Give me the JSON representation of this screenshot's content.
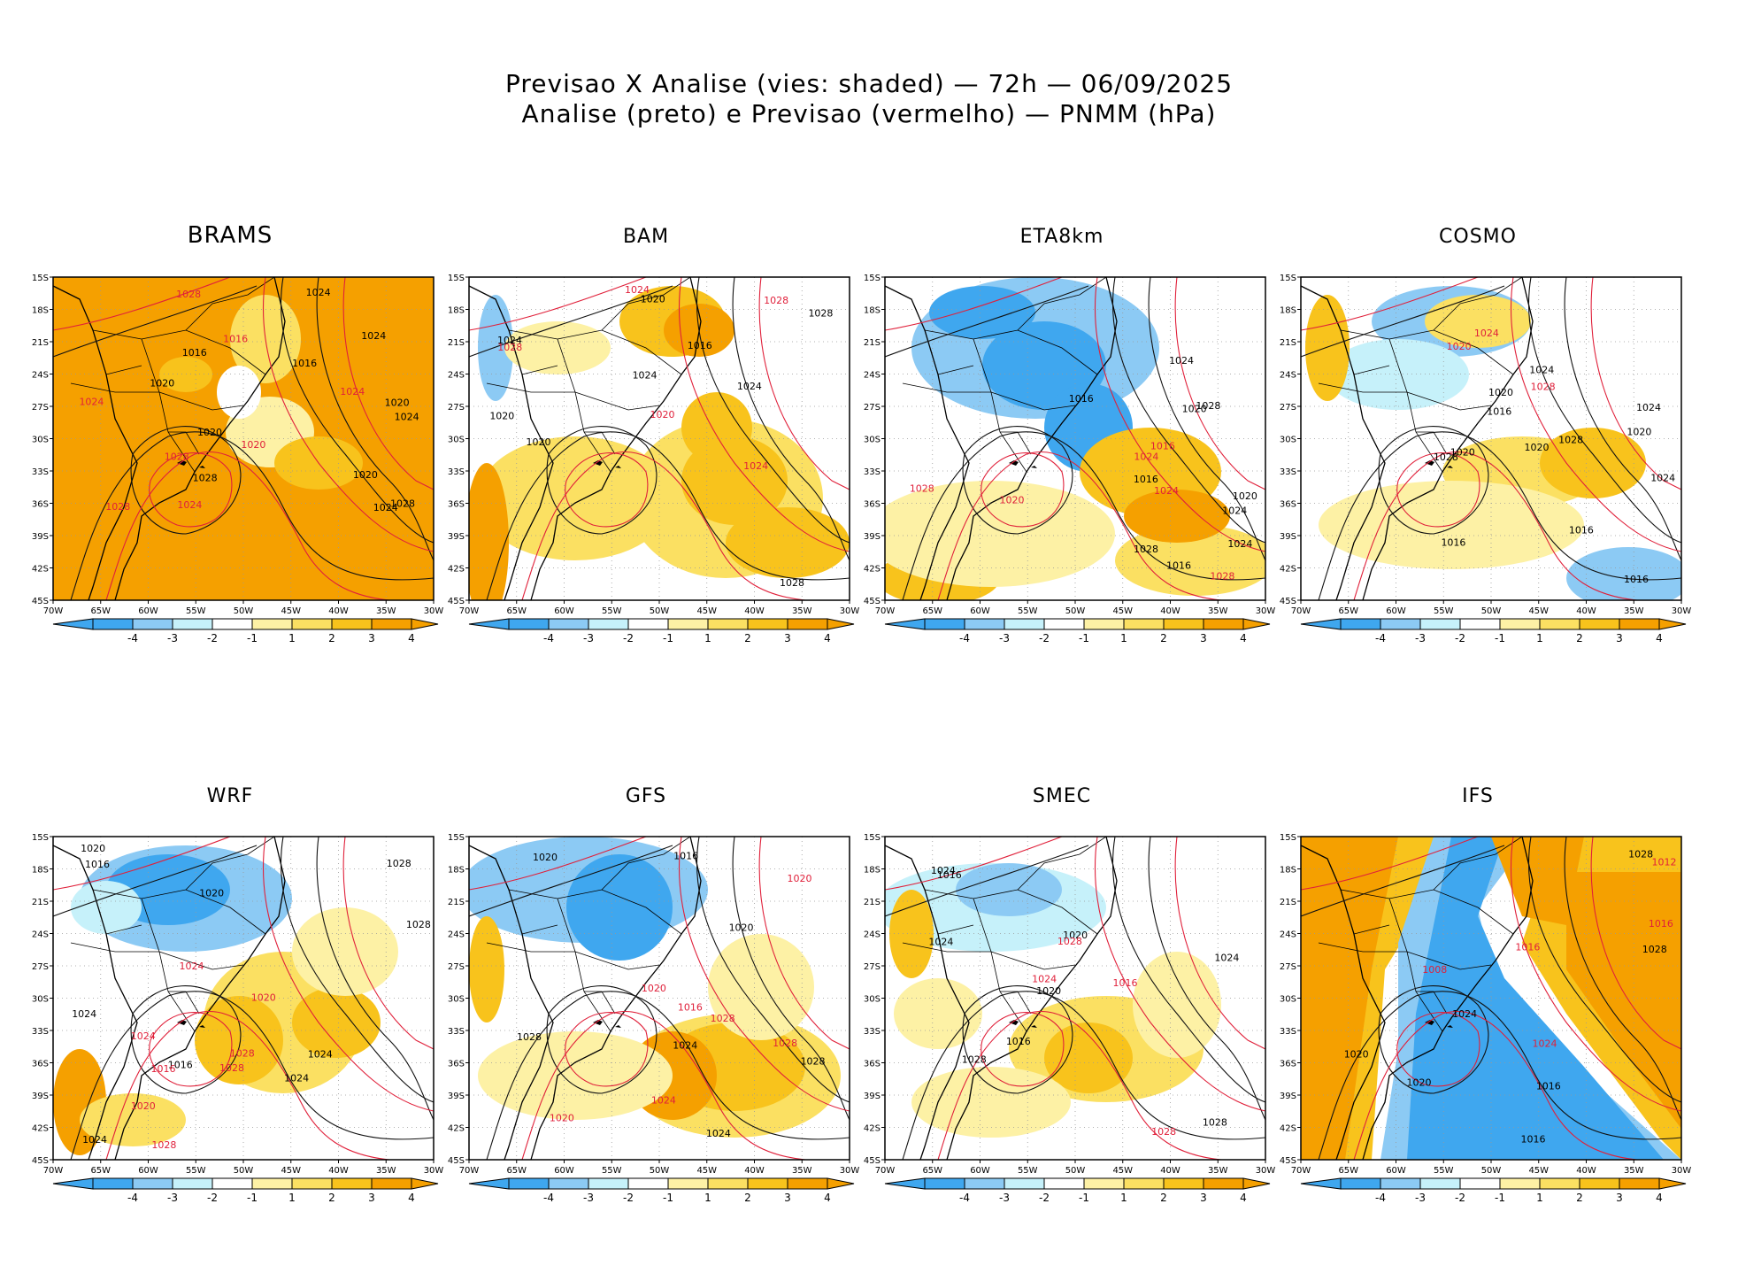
{
  "figure": {
    "title_line1": "Previsao X Analise (vies: shaded) — 72h — 06/09/2025",
    "title_line2": "Analise (preto) e Previsao (vermelho) — PNMM (hPa)"
  },
  "axes": {
    "lat_labels": [
      "15S",
      "18S",
      "21S",
      "24S",
      "27S",
      "30S",
      "33S",
      "36S",
      "39S",
      "42S",
      "45S"
    ],
    "lon_labels": [
      "70W",
      "65W",
      "60W",
      "55W",
      "50W",
      "45W",
      "40W",
      "35W",
      "30W"
    ]
  },
  "colorbar": {
    "labels": [
      "-4",
      "-3",
      "-2",
      "-1",
      "1",
      "2",
      "3",
      "4"
    ],
    "colors": [
      "#3fa7ef",
      "#8ccaf4",
      "#c6f1fa",
      "#ffffff",
      "#fdf1a5",
      "#fbe062",
      "#f8c31c",
      "#f5a000"
    ]
  },
  "panels": [
    {
      "name": "BRAMS",
      "dominant": "warm",
      "lows": [],
      "labels_black": [
        "1016",
        "1020",
        "1016",
        "1024",
        "1020",
        "1028",
        "1028",
        "1024",
        "1024",
        "1024",
        "1020",
        "1020"
      ],
      "labels_red": [
        "1024",
        "1024",
        "1028",
        "1020",
        "1028",
        "1024",
        "1028",
        "1016"
      ]
    },
    {
      "name": "BAM",
      "dominant": "mixed",
      "lows": [],
      "labels_black": [
        "1020",
        "1020",
        "1024",
        "1028",
        "1024",
        "1028",
        "1020",
        "1016",
        "1024"
      ],
      "labels_red": [
        "1028",
        "1020",
        "1024",
        "1024",
        "1028"
      ]
    },
    {
      "name": "ETA8km",
      "dominant": "mixed",
      "lows": [],
      "labels_black": [
        "1016",
        "1020",
        "1020",
        "1024",
        "1028",
        "1024",
        "1028",
        "1016",
        "1024",
        "1016"
      ],
      "labels_red": [
        "1016",
        "1024",
        "1028",
        "1024",
        "1020",
        "1028"
      ]
    },
    {
      "name": "COSMO",
      "dominant": "mixed",
      "lows": [
        "1016"
      ],
      "labels_black": [
        "1016",
        "1020",
        "1020",
        "1024",
        "1028",
        "1028",
        "1024",
        "1020",
        "1016",
        "1016",
        "1024",
        "1020"
      ],
      "labels_red": [
        "1028",
        "1024",
        "1020"
      ]
    },
    {
      "name": "WRF",
      "dominant": "mixed",
      "lows": [],
      "labels_black": [
        "1016",
        "1020",
        "1024",
        "1028",
        "1028",
        "1024",
        "1020",
        "1016",
        "1024",
        "1024"
      ],
      "labels_red": [
        "1016",
        "1020",
        "1028",
        "1024",
        "1028",
        "1024",
        "1028",
        "1020"
      ]
    },
    {
      "name": "GFS",
      "dominant": "mixed",
      "lows": [],
      "labels_black": [
        "1020",
        "1024",
        "1028",
        "1028",
        "1024",
        "1016",
        "1020"
      ],
      "labels_red": [
        "1020",
        "1016",
        "1028",
        "1024",
        "1020",
        "1028",
        "1020"
      ]
    },
    {
      "name": "SMEC",
      "dominant": "mixed",
      "lows": [],
      "labels_black": [
        "1020",
        "1024",
        "1028",
        "1024",
        "1016",
        "1020",
        "1028",
        "1024",
        "1016"
      ],
      "labels_red": [
        "1016",
        "1028",
        "1024",
        "1028"
      ]
    },
    {
      "name": "IFS",
      "dominant": "split",
      "lows": [],
      "labels_black": [
        "1020",
        "1016",
        "1020",
        "1028",
        "1028",
        "1024",
        "1016"
      ],
      "labels_red": [
        "1016",
        "1024",
        "1016",
        "1012",
        "1008"
      ]
    }
  ]
}
